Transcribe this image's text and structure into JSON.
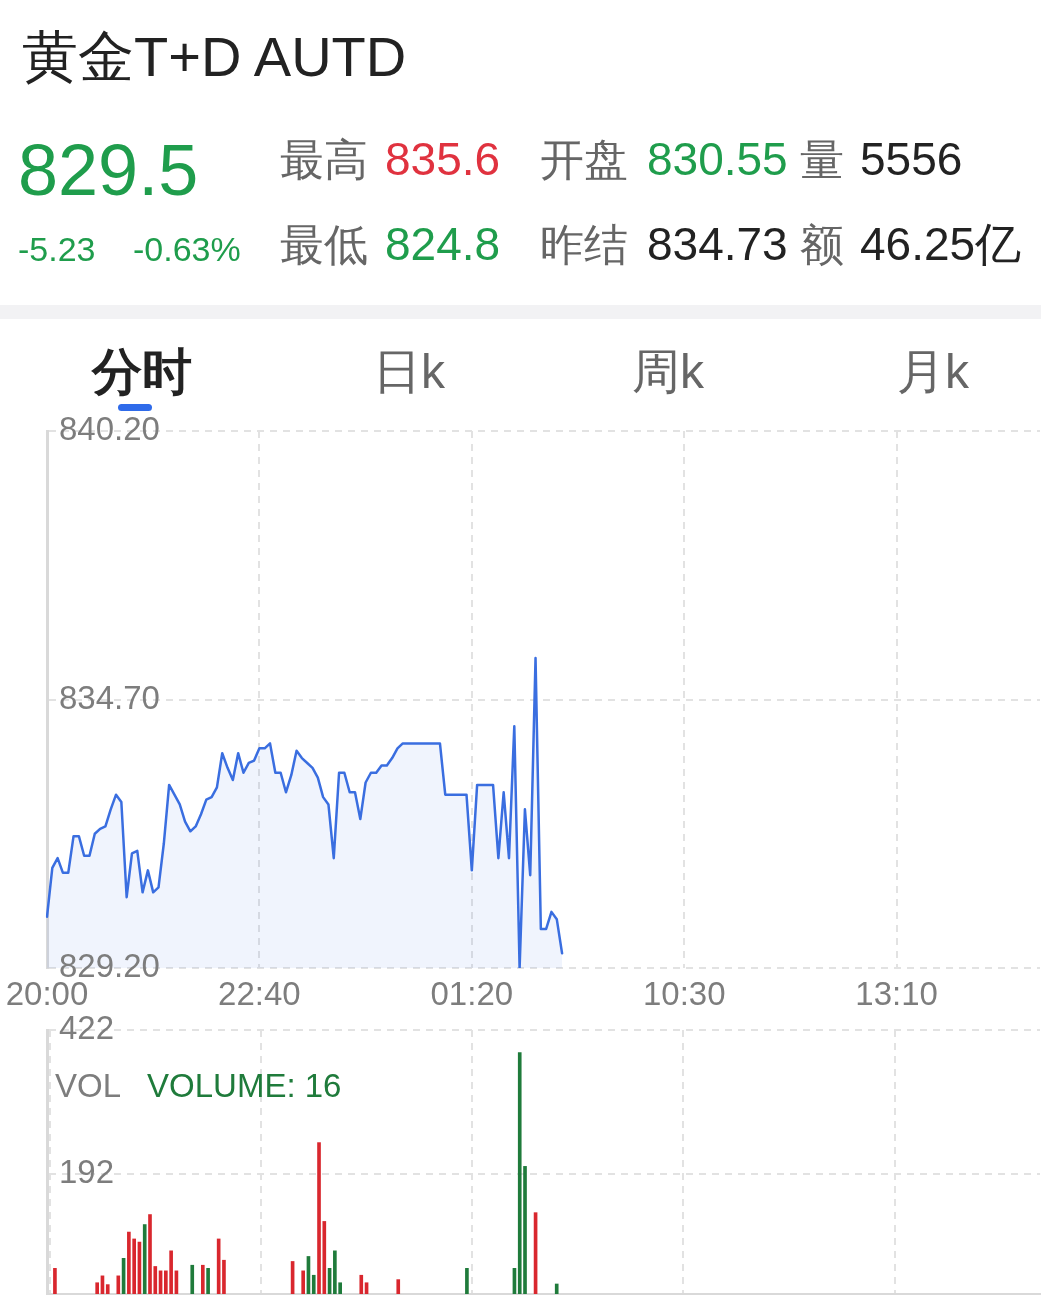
{
  "chart_data": [
    {
      "type": "other",
      "title": "黄金T+D AUTD",
      "annotations": [
        "829.5",
        "最高",
        "835.6",
        "开盘",
        "830.55",
        "量",
        "5556",
        "-5.23",
        "-0.63%",
        "最低",
        "824.8",
        "昨结",
        "834.73",
        "额",
        "46.25亿",
        "分时",
        "日k",
        "周k",
        "月k"
      ]
    },
    {
      "type": "area",
      "color": "#3a6ee0",
      "marker": "none",
      "grid": true,
      "categories": [
        "20:00",
        null,
        null,
        null,
        null,
        null,
        null,
        null,
        null,
        null,
        null,
        null,
        null,
        null,
        null,
        null,
        null,
        null,
        null,
        null,
        null,
        null,
        null,
        null,
        null,
        null,
        null,
        null,
        null,
        null,
        null,
        null,
        null,
        null,
        null,
        null,
        null,
        null,
        null,
        null,
        "22:40",
        null,
        null,
        null,
        null,
        null,
        null,
        null,
        null,
        null,
        null,
        null,
        null,
        null,
        null,
        null,
        null,
        null,
        null,
        null,
        null,
        null,
        null,
        null,
        null,
        null,
        null,
        null,
        null,
        null,
        null,
        null,
        null,
        null,
        null,
        null,
        null,
        null,
        null,
        null,
        "01:20",
        null,
        null,
        null,
        null,
        null,
        null,
        null,
        null,
        null,
        null,
        null,
        null,
        null,
        null,
        null,
        null,
        null,
        null,
        null,
        null,
        null,
        null,
        null,
        null,
        null,
        null,
        null,
        null,
        null,
        null,
        null,
        null,
        null,
        null,
        null,
        null,
        null,
        null,
        null,
        "10:30",
        null,
        null,
        null,
        null,
        null,
        null,
        null,
        null,
        null,
        null,
        null,
        null,
        null,
        null,
        null,
        null,
        null,
        null,
        null,
        null,
        null,
        null,
        null,
        null,
        null,
        null,
        null,
        null,
        null,
        null,
        null,
        null,
        null,
        null,
        null,
        null,
        null,
        null,
        null,
        "13:10",
        null,
        null,
        null,
        null,
        null,
        null,
        null,
        null,
        null,
        null,
        null,
        null,
        null,
        null,
        null,
        null,
        null,
        null,
        null,
        null,
        null,
        null,
        null,
        null,
        null,
        null,
        null
      ],
      "values": [
        830.25,
        831.25,
        831.45,
        831.15,
        831.15,
        831.9,
        831.9,
        831.5,
        831.5,
        831.95,
        832.05,
        832.1,
        832.45,
        832.75,
        832.6,
        830.65,
        831.55,
        831.6,
        830.75,
        831.2,
        830.75,
        830.85,
        831.75,
        832.95,
        832.75,
        832.55,
        832.2,
        832.0,
        832.1,
        832.35,
        832.65,
        832.7,
        832.9,
        833.6,
        833.3,
        833.05,
        833.6,
        833.2,
        833.4,
        833.45,
        833.7,
        833.7,
        833.8,
        833.2,
        833.2,
        832.8,
        833.15,
        833.65,
        833.5,
        833.4,
        833.3,
        833.1,
        832.7,
        832.55,
        831.45,
        833.2,
        833.2,
        832.8,
        832.8,
        832.25,
        833.0,
        833.2,
        833.2,
        833.35,
        833.35,
        833.5,
        833.7,
        833.8,
        833.8,
        833.8,
        833.8,
        833.8,
        833.8,
        833.8,
        833.8,
        832.75,
        832.75,
        832.75,
        832.75,
        832.75,
        831.2,
        832.95,
        832.95,
        832.95,
        832.95,
        831.45,
        832.8,
        831.45,
        834.15,
        829.2,
        832.45,
        831.1,
        835.55,
        830.0,
        830.0,
        830.35,
        830.2,
        829.5,
        null,
        null,
        null,
        null,
        null,
        null,
        null,
        null,
        null,
        null,
        null,
        null,
        null,
        null,
        null,
        null,
        null,
        null,
        null,
        null,
        null,
        null,
        null,
        null,
        null,
        null,
        null,
        null,
        null,
        null,
        null,
        null,
        null,
        null,
        null,
        null,
        null,
        null,
        null,
        null,
        null,
        null,
        null,
        null,
        null,
        null,
        null,
        null,
        null,
        null,
        null,
        null,
        null,
        null,
        null,
        null,
        null,
        null,
        null,
        null,
        null,
        null,
        null,
        null,
        null,
        null,
        null,
        null,
        null,
        null,
        null,
        null,
        null,
        null,
        null,
        null,
        null,
        null,
        null,
        null,
        null,
        null,
        null,
        null,
        null,
        null,
        null,
        null,
        null,
        null
      ],
      "ylim": [
        829.2,
        840.2
      ],
      "yticks": [
        {
          "value": 840.2,
          "label": "840.20"
        },
        {
          "value": 834.7,
          "label": "834.70"
        },
        {
          "value": 829.2,
          "label": "829.20"
        }
      ]
    },
    {
      "type": "bar",
      "grid": true,
      "annotations": [
        "VOL",
        "VOLUME: 16"
      ],
      "categories": [
        null,
        null,
        null,
        null,
        null,
        null,
        null,
        null,
        null,
        null,
        null,
        null,
        null,
        null,
        null,
        null,
        null,
        null,
        null,
        null,
        null,
        null,
        null,
        null,
        null,
        null,
        null,
        null,
        null,
        null,
        null,
        null,
        null,
        null,
        null,
        null,
        null,
        null,
        null,
        null,
        null,
        null,
        null,
        null,
        null,
        null,
        null,
        null,
        null,
        null,
        null,
        null,
        null,
        null,
        null,
        null,
        null,
        null,
        null,
        null,
        null,
        null,
        null,
        null,
        null,
        null,
        null,
        null,
        null,
        null,
        null,
        null,
        null,
        null,
        null,
        null,
        null,
        null,
        null,
        null,
        null,
        null,
        null,
        null,
        null,
        null,
        null,
        null,
        null,
        null,
        null,
        null,
        null,
        null,
        null,
        null,
        null,
        null,
        null,
        null,
        null,
        null,
        null,
        null,
        null,
        null,
        null,
        null,
        null,
        null,
        null,
        null,
        null,
        null,
        null,
        null,
        null,
        null,
        null,
        null,
        null,
        null,
        null,
        null,
        null,
        null,
        null,
        null,
        null,
        null,
        null,
        null,
        null,
        null,
        null,
        null,
        null,
        null,
        null,
        null,
        null,
        null,
        null,
        null,
        null,
        null,
        null,
        null,
        null,
        null,
        null,
        null,
        null,
        null,
        null,
        null,
        null,
        null,
        null,
        null,
        null,
        null,
        null,
        null,
        null,
        null,
        null,
        null,
        null,
        null,
        null,
        null,
        null,
        null,
        null,
        null,
        null,
        null,
        null,
        null,
        null,
        null,
        null,
        null,
        null,
        null,
        null,
        null
      ],
      "values": [
        null,
        41,
        null,
        null,
        null,
        null,
        null,
        null,
        null,
        18,
        29,
        15,
        null,
        29,
        57,
        99,
        88,
        83,
        111,
        127,
        44,
        37,
        37,
        69,
        37,
        null,
        null,
        46,
        null,
        46,
        41,
        null,
        88,
        54,
        null,
        null,
        null,
        null,
        null,
        null,
        null,
        null,
        null,
        null,
        null,
        null,
        52,
        null,
        37,
        60,
        30,
        242,
        116,
        41,
        69,
        18,
        null,
        null,
        null,
        30,
        18,
        null,
        null,
        null,
        null,
        null,
        23,
        null,
        null,
        null,
        null,
        null,
        null,
        null,
        null,
        null,
        null,
        null,
        null,
        41,
        null,
        null,
        null,
        null,
        null,
        null,
        null,
        null,
        41,
        386,
        204,
        null,
        130,
        null,
        null,
        null,
        16,
        null,
        null,
        null,
        null,
        null,
        null,
        null,
        null,
        null,
        null,
        null,
        null,
        null,
        null,
        null,
        null,
        null,
        null,
        null,
        null,
        null,
        null,
        null,
        null,
        null,
        null,
        null,
        null,
        null,
        null,
        null,
        null,
        null,
        null,
        null,
        null,
        null,
        null,
        null,
        null,
        null,
        null,
        null,
        null,
        null,
        null,
        null,
        null,
        null,
        null,
        null,
        null,
        null,
        null,
        null,
        null,
        null,
        null,
        null,
        null,
        null,
        null,
        null,
        null,
        null,
        null,
        null,
        null,
        null,
        null,
        null,
        null,
        null,
        null,
        null,
        null,
        null,
        null,
        null,
        null,
        null,
        null,
        null,
        null,
        null,
        null,
        null,
        null,
        null,
        null,
        null
      ],
      "colors": [
        null,
        "#d9272e",
        null,
        null,
        null,
        null,
        null,
        null,
        null,
        "#d9272e",
        "#d9272e",
        "#d9272e",
        null,
        "#d9272e",
        "#1f7b3b",
        "#d9272e",
        "#d9272e",
        "#d9272e",
        "#1f7b3b",
        "#d9272e",
        "#d9272e",
        "#d9272e",
        "#d9272e",
        "#d9272e",
        "#d9272e",
        null,
        null,
        "#1f7b3b",
        null,
        "#d9272e",
        "#1f7b3b",
        null,
        "#d9272e",
        "#d9272e",
        null,
        null,
        null,
        null,
        null,
        null,
        null,
        null,
        null,
        null,
        null,
        null,
        "#d9272e",
        null,
        "#d9272e",
        "#1f7b3b",
        "#1f7b3b",
        "#d9272e",
        "#d9272e",
        "#1f7b3b",
        "#1f7b3b",
        "#1f7b3b",
        null,
        null,
        null,
        "#d9272e",
        "#d9272e",
        null,
        null,
        null,
        null,
        null,
        "#d9272e",
        null,
        null,
        null,
        null,
        null,
        null,
        null,
        null,
        null,
        null,
        null,
        null,
        "#1f7b3b",
        null,
        null,
        null,
        null,
        null,
        null,
        null,
        null,
        "#1f7b3b",
        "#1f7b3b",
        "#1f7b3b",
        null,
        "#d9272e",
        null,
        null,
        null,
        "#1f7b3b",
        null,
        null,
        null,
        null,
        null,
        null,
        null,
        null,
        null,
        null,
        null,
        null,
        null,
        null,
        null,
        null,
        null,
        null,
        null,
        null,
        null,
        null,
        null,
        null,
        null,
        null,
        null,
        null,
        null,
        null,
        null,
        null,
        null,
        null,
        null,
        null,
        null,
        null,
        null,
        null,
        null,
        null,
        null,
        null,
        null,
        null,
        null,
        null,
        null,
        null,
        null,
        null,
        null,
        null,
        null,
        null,
        null,
        null,
        null,
        null,
        null,
        null,
        null,
        null,
        null,
        null,
        null,
        null,
        null,
        null,
        null,
        null,
        null,
        null,
        null,
        null,
        null,
        null,
        null,
        null,
        null,
        null,
        null,
        null,
        null,
        null,
        null,
        null,
        null,
        null,
        null
      ],
      "ylim": [
        0,
        422
      ],
      "yticks": [
        422,
        192
      ]
    }
  ]
}
